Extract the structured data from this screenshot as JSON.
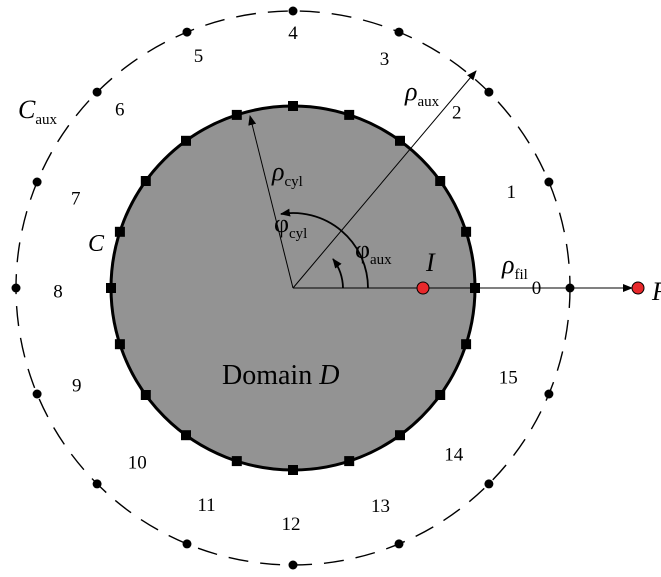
{
  "colors": {
    "domain_fill": "#939393",
    "stroke": "#000000",
    "point_red": "#e8282b",
    "background": "#ffffff"
  },
  "domain_label": {
    "text": "Domain ",
    "italic": "D"
  },
  "contour_label": "C",
  "aux_contour_label": {
    "main": "C",
    "sub": "aux"
  },
  "rho_cyl": {
    "main": "ρ",
    "sub": "cyl"
  },
  "rho_aux": {
    "main": "ρ",
    "sub": "aux"
  },
  "rho_fil": {
    "main": "ρ",
    "sub": "fil"
  },
  "phi_cyl": {
    "main": "φ",
    "sub": "cyl"
  },
  "phi_aux": {
    "main": "φ",
    "sub": "aux"
  },
  "point_I": "I",
  "point_F_partial": "F",
  "aux_point_labels": [
    "0",
    "1",
    "2",
    "3",
    "4",
    "5",
    "6",
    "7",
    "8",
    "9",
    "10",
    "11",
    "12",
    "13",
    "14",
    "15"
  ],
  "counts": {
    "aux_points": 16,
    "boundary_squares": 20
  }
}
